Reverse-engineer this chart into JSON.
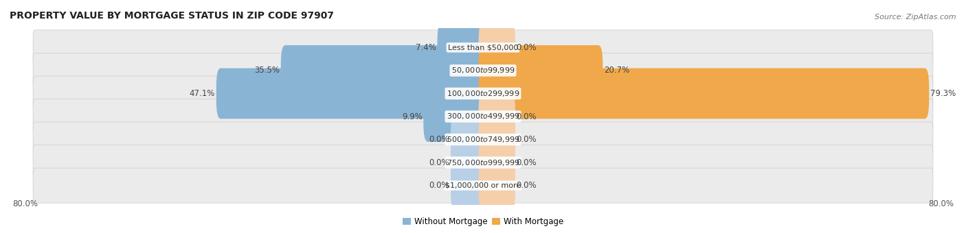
{
  "title": "PROPERTY VALUE BY MORTGAGE STATUS IN ZIP CODE 97907",
  "source": "Source: ZipAtlas.com",
  "categories": [
    "Less than $50,000",
    "$50,000 to $99,999",
    "$100,000 to $299,999",
    "$300,000 to $499,999",
    "$500,000 to $749,999",
    "$750,000 to $999,999",
    "$1,000,000 or more"
  ],
  "without_mortgage": [
    7.4,
    35.5,
    47.1,
    9.9,
    0.0,
    0.0,
    0.0
  ],
  "with_mortgage": [
    0.0,
    20.7,
    79.3,
    0.0,
    0.0,
    0.0,
    0.0
  ],
  "color_without": "#8ab4d4",
  "color_without_light": "#b8d0e6",
  "color_with": "#f0a84a",
  "color_with_light": "#f5ceaa",
  "row_bg_color": "#ebebeb",
  "row_bg_alt": "#f5f5f5",
  "axis_range": 80.0,
  "stub_size": 5.0,
  "title_fontsize": 10,
  "source_fontsize": 8,
  "label_fontsize": 8.5,
  "category_fontsize": 8,
  "axis_left_label": "80.0%",
  "axis_right_label": "80.0%"
}
